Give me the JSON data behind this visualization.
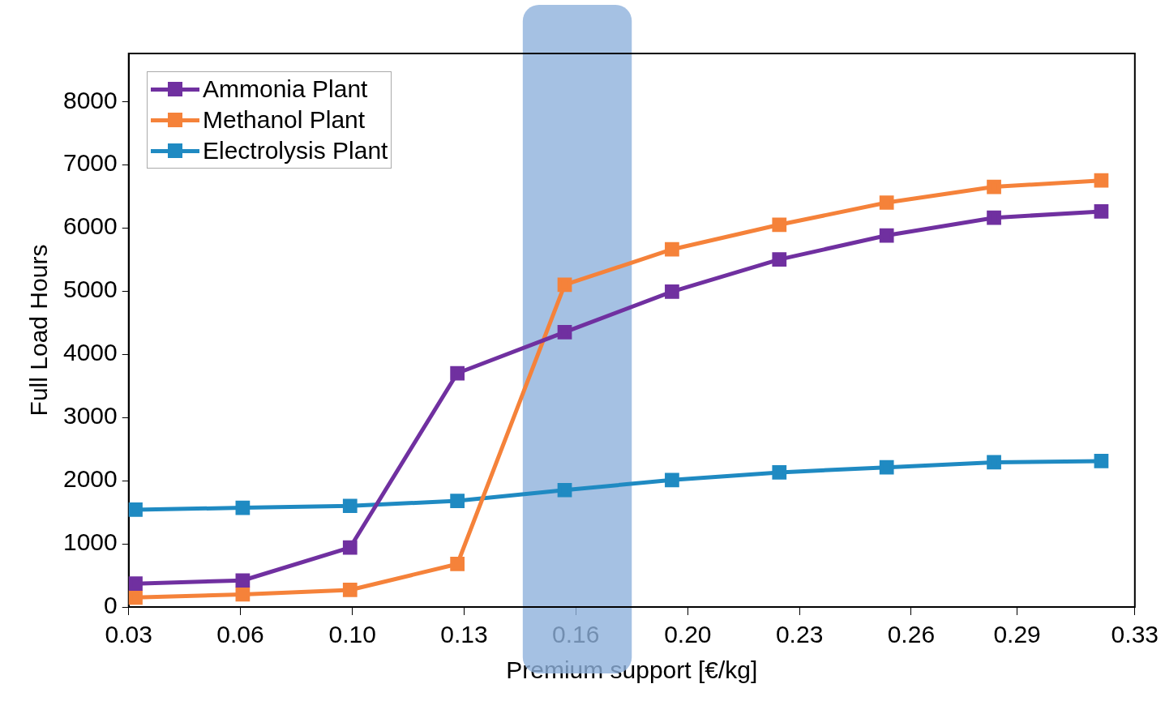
{
  "chart_data": {
    "type": "line",
    "xlabel": "Premium support [€/kg]",
    "ylabel": "Full Load Hours",
    "x": [
      0.032,
      0.064,
      0.096,
      0.128,
      0.16,
      0.192,
      0.224,
      0.256,
      0.288,
      0.32
    ],
    "series": [
      {
        "name": "Ammonia Plant",
        "color": "#7030a0",
        "values": [
          370,
          420,
          940,
          3700,
          4350,
          4990,
          5500,
          5880,
          6160,
          6260
        ]
      },
      {
        "name": "Methanol Plant",
        "color": "#f5823a",
        "values": [
          150,
          200,
          270,
          680,
          5100,
          5660,
          6050,
          6400,
          6650,
          6750
        ]
      },
      {
        "name": "Electrolysis Plant",
        "color": "#1f8ac2",
        "values": [
          1540,
          1570,
          1600,
          1680,
          1850,
          2010,
          2130,
          2210,
          2290,
          2310
        ]
      }
    ],
    "xlim": [
      0.03,
      0.33
    ],
    "xticks": [
      {
        "value": 0.03,
        "label": "0.03"
      },
      {
        "value": 0.0633,
        "label": "0.06"
      },
      {
        "value": 0.0967,
        "label": "0.10"
      },
      {
        "value": 0.13,
        "label": "0.13"
      },
      {
        "value": 0.1633,
        "label": "0.16"
      },
      {
        "value": 0.1967,
        "label": "0.20"
      },
      {
        "value": 0.23,
        "label": "0.23"
      },
      {
        "value": 0.2633,
        "label": "0.26"
      },
      {
        "value": 0.2949,
        "label": "0.29"
      },
      {
        "value": 0.33,
        "label": "0.33"
      }
    ],
    "ylim": [
      0,
      8760
    ],
    "yticks": [
      0,
      1000,
      2000,
      3000,
      4000,
      5000,
      6000,
      7000,
      8000
    ],
    "bands": [
      {
        "axis": "x",
        "from": 0.1475,
        "to": 0.18,
        "color": "#8fb1dc"
      }
    ],
    "grid": false,
    "legend": "top left",
    "marker": "square",
    "line_style": "solid"
  }
}
